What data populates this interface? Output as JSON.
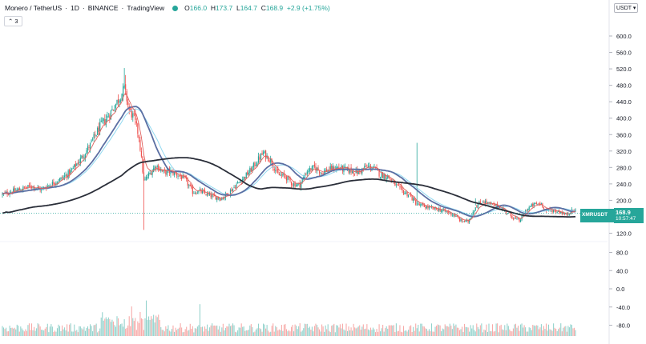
{
  "header": {
    "pair": "Monero / TetherUS",
    "interval": "1D",
    "exchange": "BINANCE",
    "brand": "TradingView",
    "open_label": "O",
    "open_value": "166.0",
    "high_label": "H",
    "high_value": "173.7",
    "low_label": "L",
    "low_value": "164.7",
    "close_label": "C",
    "close_value": "168.9",
    "change": "+2.9 (+1.75%)"
  },
  "indicator_button": "⌃ 3",
  "currency_button": "USDT ▾",
  "last_price": {
    "symbol": "XMRUSDT",
    "value": "168.9",
    "countdown": "10:57:47"
  },
  "colors": {
    "up": "#26a69a",
    "down": "#ef5350",
    "ema_fast": "#e0605c",
    "ma_mid": "#5b6fa3",
    "ma_slow": "#90d8f0",
    "ma_long": "#2a2e39"
  },
  "chart_data": {
    "type": "candlestick",
    "price_axis": {
      "ticks": [
        "600.0",
        "560.0",
        "520.0",
        "480.0",
        "440.0",
        "400.0",
        "360.0",
        "320.0",
        "280.0",
        "240.0",
        "200.0",
        "160.0",
        "120.0"
      ],
      "ylim": [
        100,
        620
      ]
    },
    "volume_axis": {
      "ticks": [
        "80.0",
        "40.0",
        "0.0",
        "-40.0",
        "-80.0"
      ]
    },
    "close_anchors": [
      [
        0,
        214
      ],
      [
        8,
        222
      ],
      [
        16,
        228
      ],
      [
        24,
        235
      ],
      [
        32,
        226
      ],
      [
        40,
        240
      ],
      [
        48,
        252
      ],
      [
        56,
        270
      ],
      [
        64,
        300
      ],
      [
        72,
        335
      ],
      [
        80,
        380
      ],
      [
        88,
        410
      ],
      [
        95,
        445
      ],
      [
        100,
        472
      ],
      [
        104,
        420
      ],
      [
        108,
        400
      ],
      [
        112,
        355
      ],
      [
        116,
        245
      ],
      [
        120,
        262
      ],
      [
        126,
        285
      ],
      [
        132,
        268
      ],
      [
        138,
        270
      ],
      [
        144,
        262
      ],
      [
        150,
        250
      ],
      [
        156,
        220
      ],
      [
        162,
        222
      ],
      [
        168,
        214
      ],
      [
        174,
        208
      ],
      [
        180,
        205
      ],
      [
        186,
        220
      ],
      [
        192,
        238
      ],
      [
        198,
        255
      ],
      [
        204,
        275
      ],
      [
        210,
        300
      ],
      [
        214,
        315
      ],
      [
        220,
        298
      ],
      [
        226,
        262
      ],
      [
        232,
        258
      ],
      [
        238,
        240
      ],
      [
        244,
        238
      ],
      [
        250,
        272
      ],
      [
        256,
        280
      ],
      [
        262,
        268
      ],
      [
        268,
        275
      ],
      [
        274,
        280
      ],
      [
        280,
        276
      ],
      [
        286,
        272
      ],
      [
        292,
        268
      ],
      [
        298,
        282
      ],
      [
        304,
        280
      ],
      [
        310,
        262
      ],
      [
        316,
        258
      ],
      [
        322,
        238
      ],
      [
        328,
        222
      ],
      [
        334,
        212
      ],
      [
        340,
        190
      ],
      [
        346,
        185
      ],
      [
        352,
        180
      ],
      [
        358,
        178
      ],
      [
        364,
        172
      ],
      [
        370,
        165
      ],
      [
        376,
        150
      ],
      [
        382,
        148
      ],
      [
        388,
        185
      ],
      [
        394,
        198
      ],
      [
        400,
        190
      ],
      [
        406,
        186
      ],
      [
        412,
        175
      ],
      [
        418,
        160
      ],
      [
        424,
        150
      ],
      [
        430,
        178
      ],
      [
        436,
        190
      ],
      [
        442,
        192
      ],
      [
        446,
        174
      ],
      [
        450,
        177
      ],
      [
        454,
        174
      ],
      [
        458,
        172
      ],
      [
        462,
        164
      ],
      [
        466,
        174
      ],
      [
        470,
        176
      ]
    ],
    "moving_averages": [
      {
        "name": "",
        "period": 7
      },
      {
        "name": "",
        "period": 25
      },
      {
        "name": "",
        "period": 30
      },
      {
        "name": "",
        "period": 99
      }
    ]
  }
}
